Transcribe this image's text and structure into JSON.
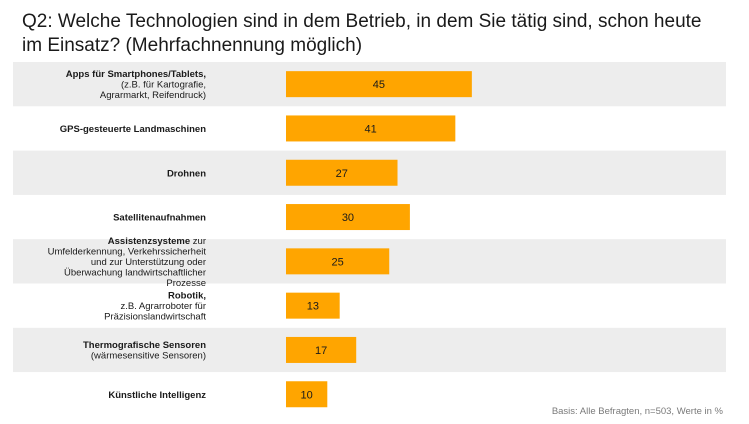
{
  "title": "Q2: Welche Technologien sind in dem Betrieb, in dem Sie tätig sind, schon heute im Einsatz? (Mehrfachnennung möglich)",
  "footer": "Basis: Alle Befragten, n=503, Werte in %",
  "colors": {
    "bar": "#ffa500",
    "band": "#ededed"
  },
  "chart_data": {
    "type": "bar",
    "orientation": "horizontal",
    "title": "Q2: Welche Technologien sind in dem Betrieb, in dem Sie tätig sind, schon heute im Einsatz? (Mehrfachnennung möglich)",
    "xlabel": "Werte in %",
    "ylabel": "",
    "xlim": [
      0,
      100
    ],
    "categories": [
      {
        "bold": "Apps für Smartphones/Tablets,",
        "rest": [
          "(z.B. für Kartografie,",
          "Agrarmarkt, Reifendruck)"
        ]
      },
      {
        "bold": "GPS-gesteuerte Landmaschinen",
        "rest": []
      },
      {
        "bold": "Drohnen",
        "rest": []
      },
      {
        "bold": "Satellitenaufnahmen",
        "rest": []
      },
      {
        "bold": "Assistenzsysteme",
        "rest": [
          "Umfelderkennung, Verkehrssicherheit",
          "und zur Unterstützung oder",
          "Überwachung landwirtschaftlicher",
          "Prozesse"
        ],
        "inline": "zur"
      },
      {
        "bold": "Robotik,",
        "rest": [
          "z.B. Agrarroboter für",
          "Präzisionslandwirtschaft"
        ]
      },
      {
        "bold": "Thermografische Sensoren",
        "rest": [
          "(wärmesensitive Sensoren)"
        ]
      },
      {
        "bold": "Künstliche Intelligenz",
        "rest": []
      }
    ],
    "values": [
      45,
      41,
      27,
      30,
      25,
      13,
      17,
      10
    ]
  }
}
